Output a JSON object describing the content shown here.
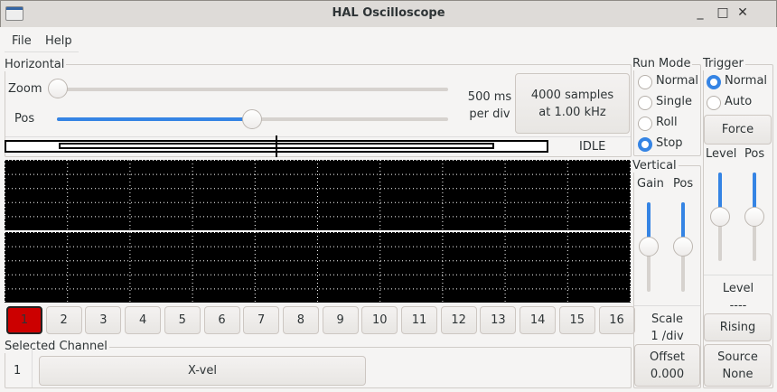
{
  "window": {
    "title": "HAL Oscilloscope",
    "min": "_",
    "max": "□",
    "close": "✕"
  },
  "menu": [
    "File",
    "Help"
  ],
  "horizontal": {
    "label": "Horizontal",
    "zoom_label": "Zoom",
    "pos_label": "Pos",
    "zoom_value": 0,
    "pos_value": 0.5,
    "scale_line1": "500 ms",
    "scale_line2": "per div",
    "samples_line1": "4000 samples",
    "samples_line2": "at 1.00 kHz",
    "status": "IDLE"
  },
  "run_mode": {
    "label": "Run Mode",
    "options": [
      "Normal",
      "Single",
      "Roll",
      "Stop"
    ],
    "selected": "Stop"
  },
  "trigger": {
    "label": "Trigger",
    "options": [
      "Normal",
      "Auto"
    ],
    "selected": "Normal",
    "force": "Force",
    "level_label": "Level",
    "pos_label": "Pos",
    "level_value": 0.5,
    "pos_value": 0.5,
    "level_title": "Level",
    "level_readout": "----",
    "edge": "Rising",
    "source_line1": "Source",
    "source_line2": "None"
  },
  "vertical": {
    "label": "Vertical",
    "gain_label": "Gain",
    "pos_label": "Pos",
    "gain_value": 0.5,
    "pos_value": 0.5,
    "scale_title": "Scale",
    "scale_value": "1 /div",
    "offset_line1": "Offset",
    "offset_line2": "0.000"
  },
  "channels": [
    "1",
    "2",
    "3",
    "4",
    "5",
    "6",
    "7",
    "8",
    "9",
    "10",
    "11",
    "12",
    "13",
    "14",
    "15",
    "16"
  ],
  "selected_channel": {
    "label": "Selected Channel",
    "number": "1",
    "name": "X-vel"
  },
  "colors": {
    "accent": "#3584e4",
    "active_channel": "#cc0000",
    "scope_bg": "#000000"
  }
}
